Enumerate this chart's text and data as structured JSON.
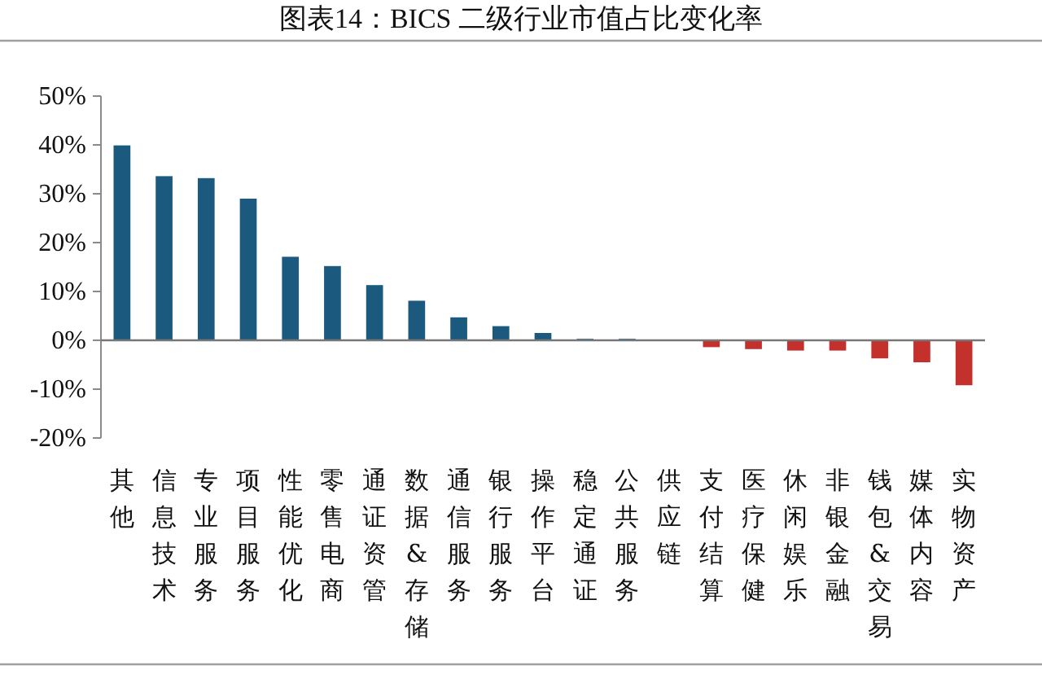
{
  "chart_data": {
    "type": "bar",
    "title": "图表14：BICS 二级行业市值占比变化率",
    "categories": [
      "其他",
      "信息技术",
      "专业服务",
      "项目服务",
      "性能优化",
      "零售电商",
      "通证资管",
      "数据&存储",
      "通信服务",
      "银行服务",
      "操作平台",
      "稳定通证",
      "公共服务",
      "供应链",
      "支付结算",
      "医疗保健",
      "休闲娱乐",
      "非银金融",
      "钱包&交易",
      "媒体内容",
      "实物资产"
    ],
    "values": [
      39.9,
      33.6,
      33.2,
      29.0,
      17.1,
      15.2,
      11.3,
      8.1,
      4.7,
      2.9,
      1.5,
      0.3,
      0.3,
      0,
      -1.4,
      -1.8,
      -2.1,
      -2.1,
      -3.7,
      -4.5,
      -9.2
    ],
    "colors": [
      "#1b5a7e",
      "#1b5a7e",
      "#1b5a7e",
      "#1b5a7e",
      "#1b5a7e",
      "#1b5a7e",
      "#1b5a7e",
      "#1b5a7e",
      "#1b5a7e",
      "#1b5a7e",
      "#1b5a7e",
      "#1b5a7e",
      "#1b5a7e",
      "#1b5a7e",
      "#c4312d",
      "#c4312d",
      "#c4312d",
      "#c4312d",
      "#c4312d",
      "#c4312d",
      "#c4312d"
    ],
    "ylim": [
      -20,
      50
    ],
    "yticks": [
      {
        "value": -20,
        "label": "-20%"
      },
      {
        "value": -10,
        "label": "-10%"
      },
      {
        "value": 0,
        "label": "0%"
      },
      {
        "value": 10,
        "label": "10%"
      },
      {
        "value": 20,
        "label": "20%"
      },
      {
        "value": 30,
        "label": "30%"
      },
      {
        "value": 40,
        "label": "40%"
      },
      {
        "value": 50,
        "label": "50%"
      }
    ]
  }
}
